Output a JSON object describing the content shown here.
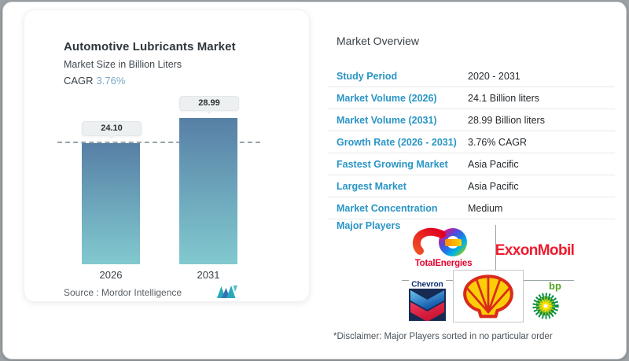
{
  "left_card": {
    "title": "Automotive Lubricants Market",
    "subtitle": "Market Size in Billion Liters",
    "cagr_label": "CAGR",
    "cagr_value": "3.76%",
    "source_text": "Source :  Mordor Intelligence",
    "logo_icon": "mordor-intelligence-logo"
  },
  "chart_data": {
    "type": "bar",
    "title": "Automotive Lubricants Market",
    "subtitle_ylabel": "Market Size in Billion Liters",
    "categories": [
      "2026",
      "2031"
    ],
    "values": [
      24.1,
      28.99
    ],
    "value_labels": [
      "24.10",
      "28.99"
    ],
    "reference_line_y": 24.1,
    "cagr": "3.76%",
    "grid": "off",
    "legend": "none",
    "bar_color_top": "#577fa5",
    "bar_color_bottom": "#82c9cf"
  },
  "overview": {
    "title": "Market Overview",
    "rows": [
      {
        "label": "Study Period",
        "value": "2020 - 2031"
      },
      {
        "label": "Market Volume (2026)",
        "value": "24.1 Billion liters"
      },
      {
        "label": "Market Volume (2031)",
        "value": "28.99 Billion liters"
      },
      {
        "label": "Growth Rate (2026 - 2031)",
        "value": "3.76% CAGR"
      },
      {
        "label": "Fastest Growing Market",
        "value": "Asia Pacific"
      },
      {
        "label": "Largest Market",
        "value": "Asia Pacific"
      },
      {
        "label": "Market Concentration",
        "value": "Medium"
      }
    ],
    "major_players_label": "Major Players",
    "players": [
      "TotalEnergies",
      "ExxonMobil",
      "Chevron",
      "Shell",
      "bp"
    ],
    "disclaimer": "*Disclaimer: Major Players sorted in no particular order"
  },
  "colors": {
    "label_blue": "#2a95c5",
    "cagr_blue": "#7aa9cc",
    "divider_gray": "#e6e9ea"
  }
}
